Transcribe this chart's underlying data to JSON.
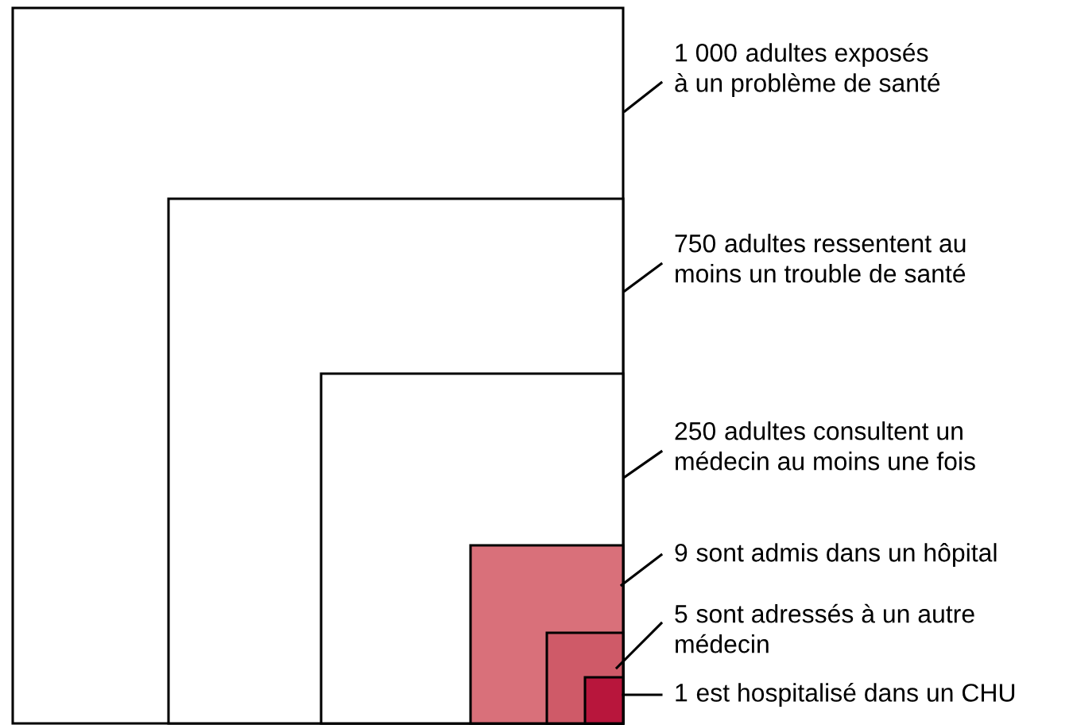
{
  "chart_data": {
    "type": "other",
    "categories": [
      "adultes exposés\nà un problème de santé",
      "adultes ressentent au\nmoins un trouble de santé",
      "adultes consultent un\nmédecin au moins une fois",
      "sont admis dans un hôpital",
      "sont adressés à un autre\nmédecin",
      "est hospitalisé dans un CHU"
    ],
    "values": [
      1000,
      750,
      250,
      9,
      5,
      1
    ],
    "value_labels": [
      "1 000",
      "750",
      "250",
      "9",
      "5",
      "1"
    ],
    "colors": [
      "#ffffff",
      "#ffffff",
      "#ffffff",
      "#d9707a",
      "#cf5a68",
      "#b8163c"
    ]
  }
}
